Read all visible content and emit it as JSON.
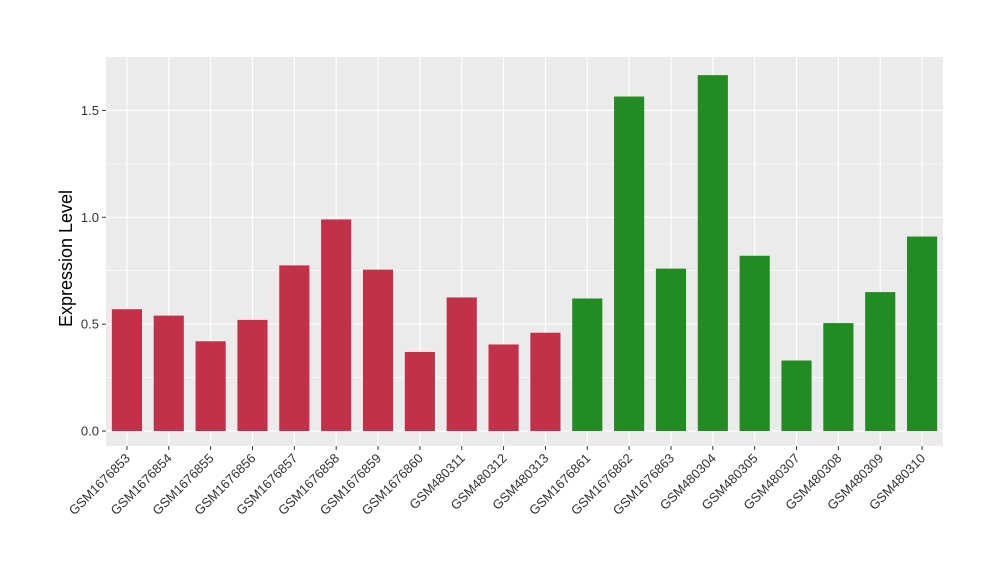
{
  "chart_data": {
    "type": "bar",
    "ylabel": "Expression Level",
    "xlabel": "",
    "title": "",
    "ylim": [
      -0.07,
      1.75
    ],
    "yticks": [
      0.0,
      0.5,
      1.0,
      1.5
    ],
    "ytick_labels": [
      "0.0",
      "0.5",
      "1.0",
      "1.5"
    ],
    "grid": true,
    "panel_background": "#ebebeb",
    "categories": [
      "GSM1676853",
      "GSM1676854",
      "GSM1676855",
      "GSM1676856",
      "GSM1676857",
      "GSM1676858",
      "GSM1676859",
      "GSM1676860",
      "GSM480311",
      "GSM480312",
      "GSM480313",
      "GSM1676861",
      "GSM1676862",
      "GSM1676863",
      "GSM480304",
      "GSM480305",
      "GSM480307",
      "GSM480308",
      "GSM480309",
      "GSM480310"
    ],
    "values": [
      0.57,
      0.54,
      0.42,
      0.52,
      0.775,
      0.99,
      0.755,
      0.37,
      0.625,
      0.405,
      0.46,
      0.62,
      1.565,
      0.76,
      1.665,
      0.82,
      0.33,
      0.505,
      0.65,
      0.91
    ],
    "groups": [
      "red",
      "red",
      "red",
      "red",
      "red",
      "red",
      "red",
      "red",
      "red",
      "red",
      "red",
      "green",
      "green",
      "green",
      "green",
      "green",
      "green",
      "green",
      "green",
      "green"
    ],
    "colors": {
      "red": "#c3304a",
      "green": "#228b22"
    }
  }
}
